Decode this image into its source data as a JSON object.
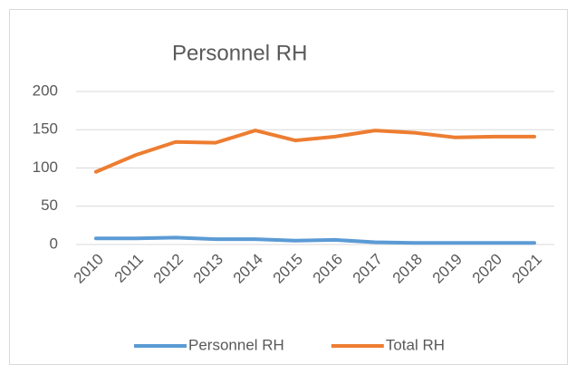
{
  "chart_data": {
    "type": "line",
    "title": "Personnel RH",
    "categories": [
      "2010",
      "2011",
      "2012",
      "2013",
      "2014",
      "2015",
      "2016",
      "2017",
      "2018",
      "2019",
      "2020",
      "2021"
    ],
    "series": [
      {
        "name": "Personnel RH",
        "color": "#5b9bd5",
        "values": [
          8,
          8,
          9,
          7,
          7,
          5,
          6,
          3,
          2,
          2,
          2,
          2
        ]
      },
      {
        "name": "Total RH",
        "color": "#ed7d31",
        "values": [
          95,
          117,
          134,
          133,
          149,
          136,
          141,
          149,
          146,
          140,
          141,
          141
        ]
      }
    ],
    "ylim": [
      0,
      200
    ],
    "yticks": [
      0,
      50,
      100,
      150,
      200
    ],
    "grid": true,
    "legend": "bottom"
  }
}
